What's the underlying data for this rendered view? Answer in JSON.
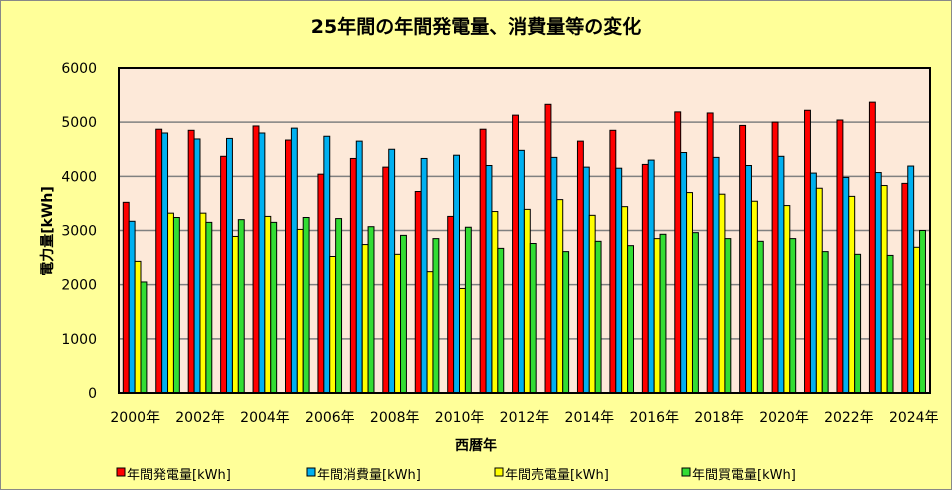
{
  "chart_data": {
    "type": "bar",
    "title": "25年間の年間発電量、消費量等の変化",
    "xlabel": "西暦年",
    "ylabel": "電力量[kWh]",
    "ylim": [
      0,
      6000
    ],
    "yticks": [
      0,
      1000,
      2000,
      3000,
      4000,
      5000,
      6000
    ],
    "grid": true,
    "legend_position": "bottom",
    "categories": [
      "2000年",
      "2001年",
      "2002年",
      "2003年",
      "2004年",
      "2005年",
      "2006年",
      "2007年",
      "2008年",
      "2009年",
      "2010年",
      "2011年",
      "2012年",
      "2013年",
      "2014年",
      "2015年",
      "2016年",
      "2017年",
      "2018年",
      "2019年",
      "2020年",
      "2021年",
      "2022年",
      "2023年",
      "2024年"
    ],
    "tick_labels": [
      "2000年",
      "2002年",
      "2004年",
      "2006年",
      "2008年",
      "2010年",
      "2012年",
      "2014年",
      "2016年",
      "2018年",
      "2020年",
      "2022年",
      "2024年"
    ],
    "series": [
      {
        "name": "年間発電量[kWh]",
        "color": "#FF0000",
        "values": [
          3520,
          4870,
          4850,
          4370,
          4930,
          4670,
          4040,
          4330,
          4170,
          3720,
          3260,
          4870,
          5130,
          5330,
          4650,
          4850,
          4220,
          5190,
          5170,
          4940,
          5000,
          5220,
          5040,
          5370,
          3870
        ]
      },
      {
        "name": "年間消費量[kWh]",
        "color": "#00B0F0",
        "values": [
          3170,
          4800,
          4690,
          4700,
          4800,
          4890,
          4740,
          4650,
          4500,
          4330,
          4390,
          4200,
          4480,
          4350,
          4170,
          4150,
          4300,
          4440,
          4350,
          4200,
          4370,
          4060,
          3980,
          4070,
          4190
        ]
      },
      {
        "name": "年間売電量[kWh]",
        "color": "#FFFF00",
        "values": [
          2430,
          3320,
          3320,
          2890,
          3260,
          3020,
          2520,
          2740,
          2560,
          2240,
          1930,
          3350,
          3390,
          3570,
          3280,
          3440,
          2850,
          3700,
          3670,
          3540,
          3460,
          3780,
          3630,
          3830,
          2690
        ]
      },
      {
        "name": "年間買電量[kWh]",
        "color": "#33DD33",
        "values": [
          2050,
          3240,
          3150,
          3200,
          3150,
          3240,
          3220,
          3070,
          2910,
          2850,
          3060,
          2670,
          2760,
          2610,
          2800,
          2720,
          2930,
          2960,
          2850,
          2800,
          2850,
          2610,
          2560,
          2540,
          3000
        ]
      }
    ]
  },
  "colors": {
    "background": "#FFFF99",
    "plot_background": "#FDE9D9",
    "gridline": "#808080"
  }
}
